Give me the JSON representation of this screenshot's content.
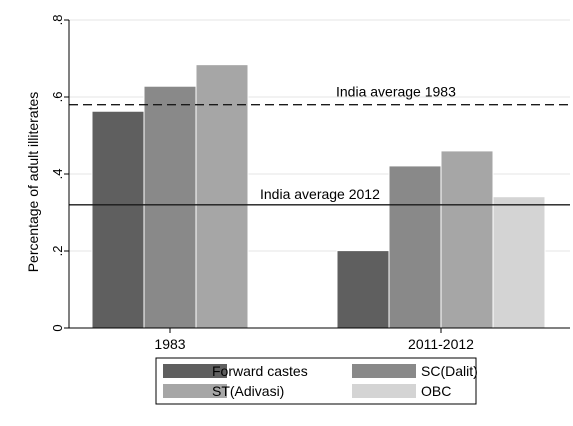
{
  "chart_data": {
    "type": "bar",
    "categories": [
      "1983",
      "2011-2012"
    ],
    "series": [
      {
        "name": "Forward castes",
        "values": [
          0.563,
          0.201
        ]
      },
      {
        "name": "SC(Dalit)",
        "values": [
          0.628,
          0.421
        ]
      },
      {
        "name": "ST(Adivasi)",
        "values": [
          0.684,
          0.46
        ]
      },
      {
        "name": "OBC",
        "values": [
          null,
          0.341
        ]
      }
    ],
    "colors": [
      "#5f5f5f",
      "#898989",
      "#a6a6a6",
      "#d4d4d4"
    ],
    "ylabel": "Percentage of adult illiterates",
    "xlabel": "",
    "ylim": [
      0,
      0.8
    ],
    "yticks": [
      0,
      0.2,
      0.4,
      0.6,
      0.8
    ],
    "ytick_labels": [
      "0",
      ".2",
      ".4",
      ".6",
      ".8"
    ],
    "grid": "horizontal",
    "legend_position": "bottom",
    "reference_lines": [
      {
        "label": "India average 1983",
        "value": 0.58,
        "style": "dashed"
      },
      {
        "label": "India average 2012",
        "value": 0.32,
        "style": "solid"
      }
    ]
  }
}
